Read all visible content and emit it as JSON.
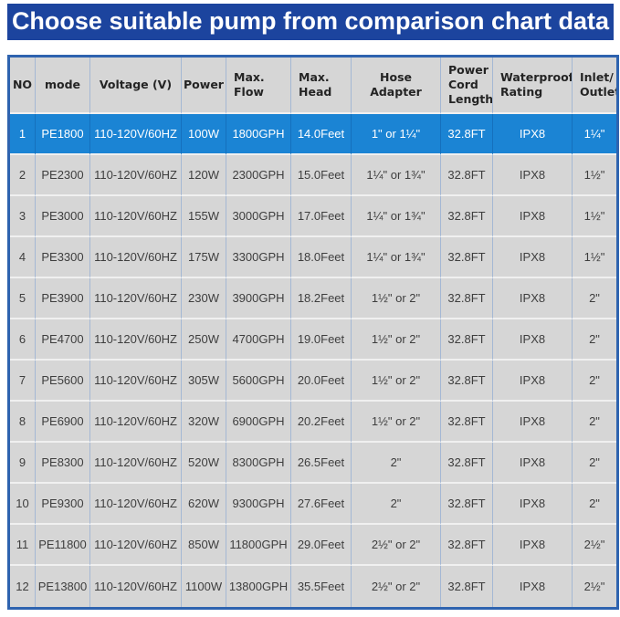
{
  "page_title": "Choose suitable pump from comparison chart data",
  "colors": {
    "banner_bg": "#1c449e",
    "banner_text": "#ffffff",
    "highlight_row_bg": "#1b84d4",
    "highlight_row_text": "#ffffff",
    "cell_bg": "#d6d6d6",
    "grid_vertical": "#a4b8d4",
    "grid_horizontal": "#f0f0f0",
    "highlight_grid_vertical": "#1570bd",
    "outer_border": "#2e63af",
    "header_text": "#242424",
    "cell_text": "#3e3e3e"
  },
  "chart_data": {
    "type": "table",
    "title": "Choose suitable pump from comparison chart data",
    "columns": [
      {
        "key": "no",
        "label": "NO",
        "align": "center"
      },
      {
        "key": "mode",
        "label": "mode",
        "align": "center"
      },
      {
        "key": "voltage",
        "label": "Voltage (V)",
        "align": "center"
      },
      {
        "key": "power",
        "label": "Power",
        "align": "center"
      },
      {
        "key": "max-flow",
        "label": "Max.\nFlow",
        "align": "left"
      },
      {
        "key": "max-head",
        "label": "Max.\nHead",
        "align": "left"
      },
      {
        "key": "hose-adapter",
        "label": "Hose Adapter",
        "align": "center"
      },
      {
        "key": "power-cord-length",
        "label": "Power\nCord\nLength",
        "align": "left"
      },
      {
        "key": "waterproof-rating",
        "label": "Waterproof\nRating",
        "align": "left"
      },
      {
        "key": "inlet-outlet",
        "label": "Inlet/\nOutlet",
        "align": "left"
      }
    ],
    "rows": [
      {
        "highlighted": true,
        "cells": [
          "1",
          "PE1800",
          "110-120V/60HZ",
          "100W",
          "1800GPH",
          "14.0Feet",
          "1\" or 1¼\"",
          "32.8FT",
          "IPX8",
          "1¼\""
        ]
      },
      {
        "highlighted": false,
        "cells": [
          "2",
          "PE2300",
          "110-120V/60HZ",
          "120W",
          "2300GPH",
          "15.0Feet",
          "1¼\" or 1¾\"",
          "32.8FT",
          "IPX8",
          "1½\""
        ]
      },
      {
        "highlighted": false,
        "cells": [
          "3",
          "PE3000",
          "110-120V/60HZ",
          "155W",
          "3000GPH",
          "17.0Feet",
          "1¼\" or 1¾\"",
          "32.8FT",
          "IPX8",
          "1½\""
        ]
      },
      {
        "highlighted": false,
        "cells": [
          "4",
          "PE3300",
          "110-120V/60HZ",
          "175W",
          "3300GPH",
          "18.0Feet",
          "1¼\" or 1¾\"",
          "32.8FT",
          "IPX8",
          "1½\""
        ]
      },
      {
        "highlighted": false,
        "cells": [
          "5",
          "PE3900",
          "110-120V/60HZ",
          "230W",
          "3900GPH",
          "18.2Feet",
          "1½\" or 2\"",
          "32.8FT",
          "IPX8",
          "2\""
        ]
      },
      {
        "highlighted": false,
        "cells": [
          "6",
          "PE4700",
          "110-120V/60HZ",
          "250W",
          "4700GPH",
          "19.0Feet",
          "1½\" or 2\"",
          "32.8FT",
          "IPX8",
          "2\""
        ]
      },
      {
        "highlighted": false,
        "cells": [
          "7",
          "PE5600",
          "110-120V/60HZ",
          "305W",
          "5600GPH",
          "20.0Feet",
          "1½\" or 2\"",
          "32.8FT",
          "IPX8",
          "2\""
        ]
      },
      {
        "highlighted": false,
        "cells": [
          "8",
          "PE6900",
          "110-120V/60HZ",
          "320W",
          "6900GPH",
          "20.2Feet",
          "1½\" or 2\"",
          "32.8FT",
          "IPX8",
          "2\""
        ]
      },
      {
        "highlighted": false,
        "cells": [
          "9",
          "PE8300",
          "110-120V/60HZ",
          "520W",
          "8300GPH",
          "26.5Feet",
          "2\"",
          "32.8FT",
          "IPX8",
          "2\""
        ]
      },
      {
        "highlighted": false,
        "cells": [
          "10",
          "PE9300",
          "110-120V/60HZ",
          "620W",
          "9300GPH",
          "27.6Feet",
          "2\"",
          "32.8FT",
          "IPX8",
          "2\""
        ]
      },
      {
        "highlighted": false,
        "cells": [
          "11",
          "PE11800",
          "110-120V/60HZ",
          "850W",
          "11800GPH",
          "29.0Feet",
          "2½\" or 2\"",
          "32.8FT",
          "IPX8",
          "2½\""
        ]
      },
      {
        "highlighted": false,
        "cells": [
          "12",
          "PE13800",
          "110-120V/60HZ",
          "1100W",
          "13800GPH",
          "35.5Feet",
          "2½\" or 2\"",
          "32.8FT",
          "IPX8",
          "2½\""
        ]
      }
    ]
  }
}
